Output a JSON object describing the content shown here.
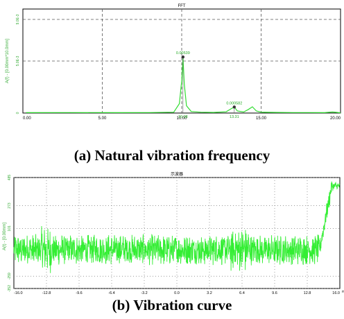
{
  "chart_data": [
    {
      "type": "line",
      "title": "FFT",
      "caption": "(a) Natural vibration frequency",
      "ylabel": "A(f) - [0.00mm*10.0mm]",
      "xlim": [
        0,
        20
      ],
      "ylim": [
        0,
        0.01
      ],
      "x_ticks": [
        "0.00",
        "5.00",
        "10.00",
        "15.00",
        "20.00"
      ],
      "y_ticks": [
        "0",
        "5.0E-3",
        "9.0E-3"
      ],
      "grid": "dashed",
      "color": "#33dd33",
      "peaks": [
        {
          "freq": 10.08,
          "freq_label": "10.08",
          "value": 0.00539,
          "value_label": "0.00539"
        },
        {
          "freq": 13.31,
          "freq_label": "13.31",
          "value": 0.000582,
          "value_label": "0.000582"
        }
      ],
      "series": [
        {
          "x": [
            0.2,
            3,
            6,
            8,
            9.5,
            9.85,
            10.0,
            10.08,
            10.16,
            10.3,
            10.6,
            11.2,
            12.0,
            12.8,
            13.1,
            13.31,
            13.5,
            13.9,
            14.2,
            14.45,
            14.7,
            15.0,
            16,
            17,
            18,
            19,
            19.5,
            20
          ],
          "y": [
            4e-05,
            5e-05,
            4e-05,
            5e-05,
            8e-05,
            0.0009,
            0.0031,
            0.00539,
            0.0028,
            0.0007,
            0.00015,
            8e-05,
            6e-05,
            0.00012,
            0.0004,
            0.000582,
            0.0002,
            0.0001,
            0.00035,
            0.0006,
            0.0002,
            8e-05,
            6e-05,
            5e-05,
            5e-05,
            4e-05,
            0.0001,
            3e-05
          ]
        }
      ]
    },
    {
      "type": "line",
      "title": "示波器",
      "caption": "(b) Vibration curve",
      "ylabel": "A(t) - [0.00mm]",
      "xlim": [
        -16.0,
        16.0
      ],
      "ylim": [
        -352,
        485
      ],
      "x_ticks": [
        "-16.0",
        "-12.8",
        "-9.6",
        "-6.4",
        "-3.2",
        "0.0",
        "3.2",
        "6.4",
        "9.6",
        "12.8",
        "16.0"
      ],
      "x_unit": "ms",
      "y_ticks": [
        "485",
        "273",
        "101",
        "-259",
        "-352"
      ],
      "grid": "dotted",
      "color": "#33ee33",
      "signal": {
        "baseline": -60,
        "noise_amplitude": 120,
        "rise_start": 14.0,
        "rise_end": 15.2,
        "plateau_level": 420
      }
    }
  ]
}
